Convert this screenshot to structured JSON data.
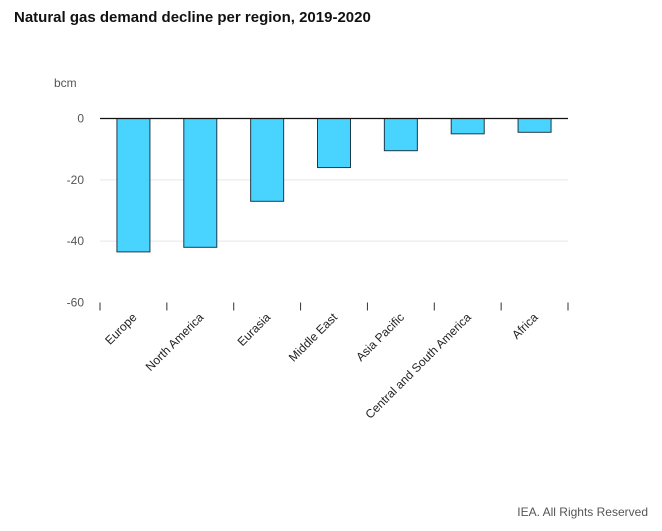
{
  "title": "Natural gas demand decline per region, 2019-2020",
  "credit": "IEA. All Rights Reserved",
  "chart_data": {
    "type": "bar",
    "title": "Natural gas demand decline per region, 2019-2020",
    "xlabel": "",
    "ylabel": "bcm",
    "categories": [
      "Europe",
      "North America",
      "Eurasia",
      "Middle East",
      "Asia Pacific",
      "Central and South America",
      "Africa"
    ],
    "values": [
      -43.5,
      -42,
      -27,
      -16,
      -10.5,
      -5,
      -4.5
    ],
    "ylim": [
      -60,
      0
    ],
    "yticks": [
      "0",
      "-20",
      "-40",
      "-60"
    ],
    "ytick_values": [
      0,
      -20,
      -40,
      -60
    ],
    "grid": true,
    "legend": "none",
    "bar_color": "#49d3ff",
    "bar_edge_color": "#1d3a4a"
  }
}
